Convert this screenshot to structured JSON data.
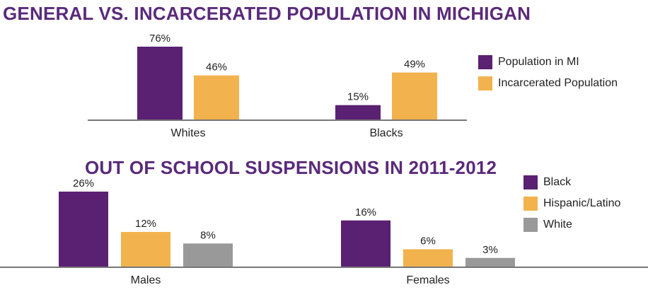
{
  "colors": {
    "purple": "#5a2072",
    "orange": "#f2b24d",
    "gray": "#999999",
    "title": "#5a2a7a",
    "axis": "#777777"
  },
  "chart_data": [
    {
      "type": "bar",
      "title": "GENERAL VS. INCARCERATED POPULATION IN MICHIGAN",
      "categories": [
        "Whites",
        "Blacks"
      ],
      "series": [
        {
          "name": "Population in MI",
          "values": [
            76,
            15
          ],
          "labels": [
            "76%",
            "15%"
          ]
        },
        {
          "name": "Incarcerated Population",
          "values": [
            46,
            49
          ],
          "labels": [
            "46%",
            "49%"
          ]
        }
      ],
      "ylim": [
        0,
        76
      ],
      "legend": "right",
      "grid": false
    },
    {
      "type": "bar",
      "title": "OUT OF SCHOOL SUSPENSIONS IN 2011-2012",
      "categories": [
        "Males",
        "Females"
      ],
      "series": [
        {
          "name": "Black",
          "values": [
            26,
            16
          ],
          "labels": [
            "26%",
            "16%"
          ]
        },
        {
          "name": "Hispanic/Latino",
          "values": [
            12,
            6
          ],
          "labels": [
            "12%",
            "6%"
          ]
        },
        {
          "name": "White",
          "values": [
            8,
            3
          ],
          "labels": [
            "8%",
            "3%"
          ]
        }
      ],
      "ylim": [
        0,
        26
      ],
      "legend": "right",
      "grid": false
    }
  ]
}
